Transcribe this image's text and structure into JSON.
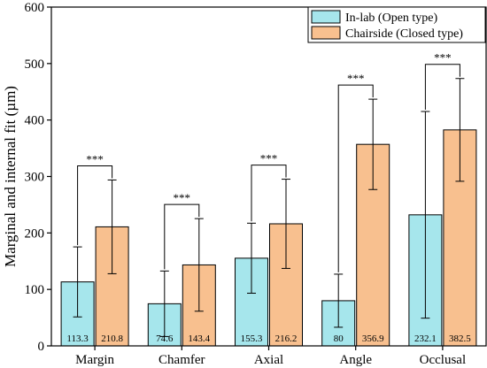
{
  "chart_data": {
    "type": "bar",
    "ylabel": "Marginal and internal fit (µm)",
    "ylim": [
      0,
      600
    ],
    "yticks": [
      0,
      100,
      200,
      300,
      400,
      500,
      600
    ],
    "categories": [
      "Margin",
      "Chamfer",
      "Axial",
      "Angle",
      "Occlusal"
    ],
    "series": [
      {
        "name": "In-lab (Open type)",
        "color": "#a6e6ec",
        "values": [
          113.3,
          74.6,
          155.3,
          80,
          232.1
        ],
        "value_labels": [
          "113.3",
          "74.6",
          "155.3",
          "80",
          "232.1"
        ],
        "error": [
          62,
          58,
          62,
          47,
          183
        ]
      },
      {
        "name": "Chairside (Closed type)",
        "color": "#f8c08f",
        "values": [
          210.8,
          143.4,
          216.2,
          356.9,
          382.5
        ],
        "value_labels": [
          "210.8",
          "143.4",
          "216.2",
          "356.9",
          "382.5"
        ],
        "error": [
          83,
          82,
          79,
          80,
          91
        ]
      }
    ],
    "significance": [
      "***",
      "***",
      "***",
      "***",
      "***"
    ],
    "legend_position": "top-right",
    "grid": false
  }
}
